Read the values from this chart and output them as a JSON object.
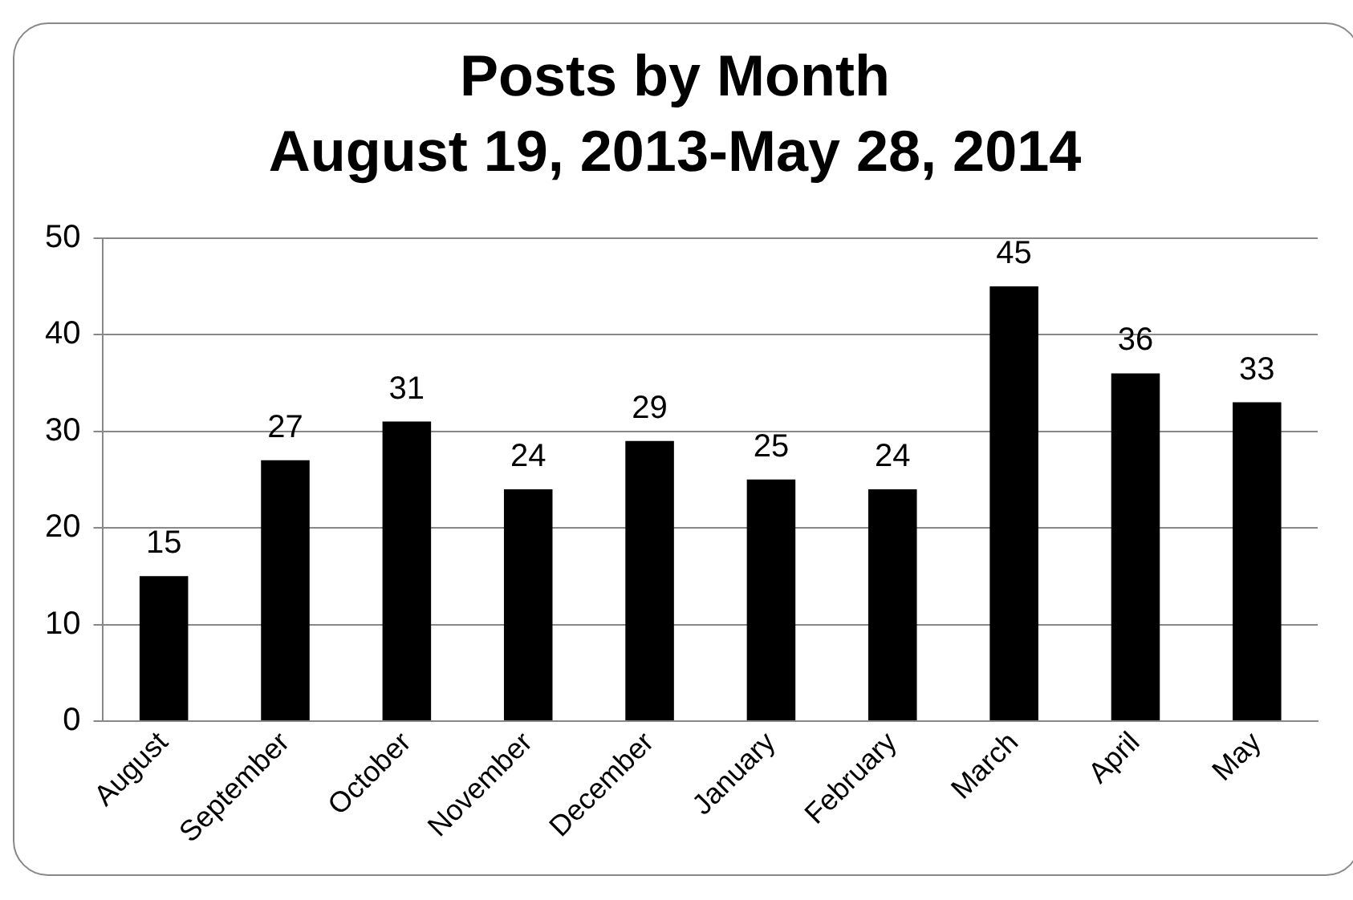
{
  "chart_data": {
    "type": "bar",
    "title": "Posts by Month",
    "subtitle": "August 19, 2013-May 28, 2014",
    "categories": [
      "August",
      "September",
      "October",
      "November",
      "December",
      "January",
      "February",
      "March",
      "April",
      "May"
    ],
    "values": [
      15,
      27,
      31,
      24,
      29,
      25,
      24,
      45,
      36,
      33
    ],
    "color": "#000000",
    "ylim": [
      0,
      50
    ],
    "yticks": [
      0,
      10,
      20,
      30,
      40,
      50
    ],
    "grid": "y",
    "data_labels": true,
    "legend": false
  }
}
